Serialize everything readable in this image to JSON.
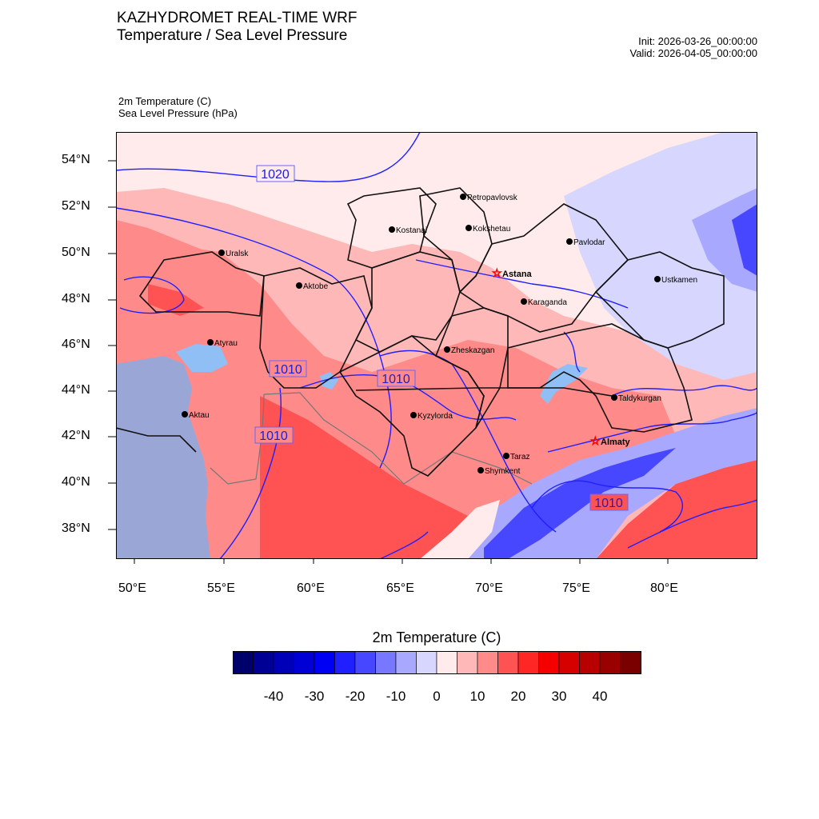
{
  "header": {
    "title": "KAZHYDROMET REAL-TIME WRF",
    "subtitle": "Temperature / Sea Level Pressure",
    "init": "Init: 2026-03-26_00:00:00",
    "valid": "Valid: 2026-04-05_00:00:00",
    "var1": "2m Temperature   (C)",
    "var2": "Sea Level Pressure   (hPa)"
  },
  "map": {
    "lat_ticks": [
      "54°N",
      "52°N",
      "50°N",
      "48°N",
      "46°N",
      "44°N",
      "42°N",
      "40°N",
      "38°N"
    ],
    "lon_ticks": [
      "50°E",
      "55°E",
      "60°E",
      "65°E",
      "70°E",
      "75°E",
      "80°E"
    ],
    "isobar_labels": [
      "1020",
      "1010",
      "1010",
      "1010",
      "1010"
    ],
    "cities": [
      {
        "name": "Petropavlovsk",
        "capital": false
      },
      {
        "name": "Kostanai",
        "capital": false
      },
      {
        "name": "Kokshetau",
        "capital": false
      },
      {
        "name": "Pavlodar",
        "capital": false
      },
      {
        "name": "Uralsk",
        "capital": false
      },
      {
        "name": "Astana",
        "capital": true
      },
      {
        "name": "Aktobe",
        "capital": false
      },
      {
        "name": "Ustkamen",
        "capital": false
      },
      {
        "name": "Karaganda",
        "capital": false
      },
      {
        "name": "Atyrau",
        "capital": false
      },
      {
        "name": "Zheskazgan",
        "capital": false
      },
      {
        "name": "Taldykurgan",
        "capital": false
      },
      {
        "name": "Aktau",
        "capital": false
      },
      {
        "name": "Kyzylorda",
        "capital": false
      },
      {
        "name": "Almaty",
        "capital": true
      },
      {
        "name": "Taraz",
        "capital": false
      },
      {
        "name": "Shymkent",
        "capital": false
      }
    ]
  },
  "colorbar": {
    "title": "2m Temperature  (C)",
    "labels": [
      "-40",
      "-30",
      "-20",
      "-10",
      "0",
      "10",
      "20",
      "30",
      "40"
    ],
    "colors": [
      "#00006b",
      "#000094",
      "#0000b8",
      "#0000d6",
      "#0000f5",
      "#1f1fff",
      "#4747ff",
      "#7777ff",
      "#a8a8ff",
      "#d6d6ff",
      "#ffebeb",
      "#ffb8b8",
      "#ff8a8a",
      "#ff5252",
      "#ff2626",
      "#f50000",
      "#d60000",
      "#b80000",
      "#990000",
      "#7a0000"
    ]
  }
}
